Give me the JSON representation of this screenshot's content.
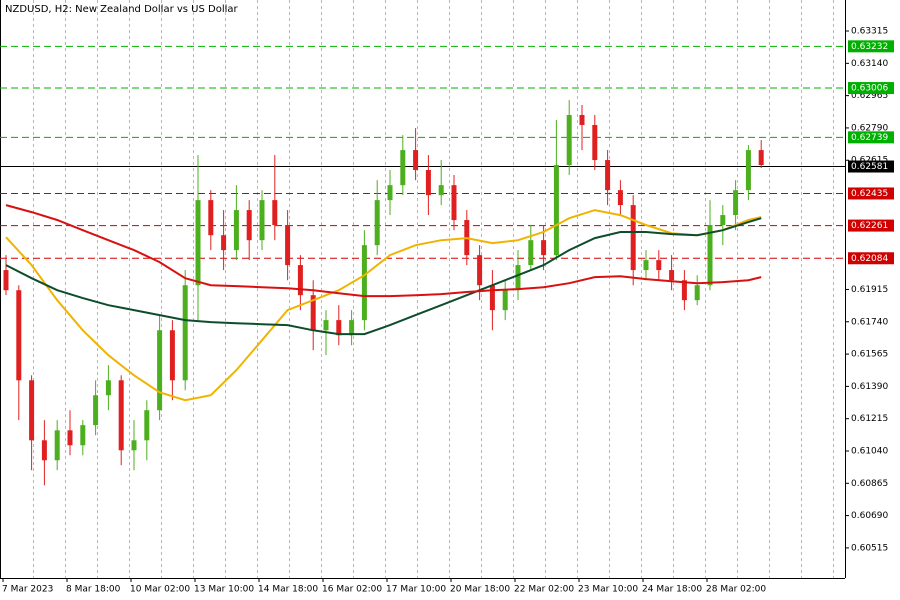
{
  "chart_data": {
    "type": "candlestick",
    "title": "NZDUSD, H2:  New Zealand Dollar vs US Dollar",
    "categories": [
      "7 Mar 2023",
      null,
      null,
      null,
      null,
      "8 Mar 18:00",
      null,
      null,
      null,
      null,
      "10 Mar 02:00",
      null,
      null,
      null,
      null,
      "13 Mar 10:00",
      null,
      null,
      null,
      null,
      "14 Mar 18:00",
      null,
      null,
      null,
      null,
      "16 Mar 02:00",
      null,
      null,
      null,
      null,
      "17 Mar 10:00",
      null,
      null,
      null,
      null,
      "20 Mar 18:00",
      null,
      null,
      null,
      null,
      "22 Mar 02:00",
      null,
      null,
      null,
      null,
      "23 Mar 10:00",
      null,
      null,
      null,
      null,
      "24 Mar 18:00",
      null,
      null,
      null,
      null,
      "28 Mar 02:00",
      null,
      null,
      null,
      null
    ],
    "open": [
      0.6202,
      0.61911,
      0.61423,
      0.61098,
      0.6099,
      0.61152,
      0.61071,
      0.6118,
      0.61342,
      0.61423,
      0.61044,
      0.61098,
      0.61261,
      0.61694,
      0.61423,
      0.61938,
      0.62399,
      0.62209,
      0.62128,
      0.62345,
      0.62182,
      0.62399,
      0.62264,
      0.62047,
      0.61884,
      0.61694,
      0.61749,
      0.61667,
      0.61749,
      0.62155,
      0.62399,
      0.6248,
      0.6267,
      0.62562,
      0.62426,
      0.6248,
      0.62291,
      0.62101,
      0.61938,
      0.61803,
      0.61911,
      0.62047,
      0.62182,
      0.62101,
      0.62589,
      0.6286,
      0.62806,
      0.62616,
      0.62453,
      0.62372,
      0.6202,
      0.62074,
      0.6202,
      0.61965,
      0.61857,
      0.61938,
      0.62264,
      0.62318,
      0.62453,
      0.6267
    ],
    "high": [
      0.62101,
      0.61938,
      0.6145,
      0.61207,
      0.61207,
      0.61261,
      0.61207,
      0.61423,
      0.61505,
      0.6145,
      0.61207,
      0.61315,
      0.61776,
      0.61749,
      0.6202,
      0.62643,
      0.62453,
      0.62345,
      0.6248,
      0.62399,
      0.62453,
      0.62643,
      0.62345,
      0.62101,
      0.61965,
      0.61803,
      0.6183,
      0.61803,
      0.62236,
      0.62507,
      0.62562,
      0.62751,
      0.62789,
      0.62643,
      0.62616,
      0.62535,
      0.62345,
      0.62155,
      0.6202,
      0.61965,
      0.62128,
      0.62264,
      0.62264,
      0.62833,
      0.62941,
      0.62914,
      0.6286,
      0.6267,
      0.62507,
      0.62426,
      0.62128,
      0.62128,
      0.62101,
      0.6202,
      0.61992,
      0.62399,
      0.62372,
      0.62507,
      0.62697,
      0.62724
    ],
    "low": [
      0.61884,
      0.61207,
      0.60936,
      0.60854,
      0.60936,
      0.61017,
      0.61017,
      0.61125,
      0.61261,
      0.60963,
      0.60936,
      0.6099,
      0.61207,
      0.61315,
      0.61369,
      0.61749,
      0.62128,
      0.6202,
      0.62074,
      0.62074,
      0.62128,
      0.62182,
      0.61965,
      0.61803,
      0.61586,
      0.61559,
      0.61613,
      0.61613,
      0.61694,
      0.62101,
      0.62318,
      0.62426,
      0.62507,
      0.62318,
      0.62372,
      0.62236,
      0.62047,
      0.61857,
      0.61694,
      0.61749,
      0.61857,
      0.6202,
      0.6202,
      0.62074,
      0.62535,
      0.6267,
      0.62562,
      0.62372,
      0.62318,
      0.61938,
      0.61965,
      0.61965,
      0.61911,
      0.61803,
      0.6183,
      0.61911,
      0.62155,
      0.62236,
      0.62399,
      0.62573
    ],
    "close": [
      0.61911,
      0.61423,
      0.61098,
      0.6099,
      0.61152,
      0.61071,
      0.6118,
      0.61342,
      0.61423,
      0.61044,
      0.61098,
      0.61261,
      0.61694,
      0.61423,
      0.61938,
      0.62399,
      0.62209,
      0.62128,
      0.62345,
      0.62182,
      0.62399,
      0.62264,
      0.62047,
      0.61884,
      0.61694,
      0.61749,
      0.61667,
      0.61749,
      0.62155,
      0.62399,
      0.6248,
      0.6267,
      0.62562,
      0.62426,
      0.6248,
      0.62291,
      0.62101,
      0.61938,
      0.61803,
      0.61911,
      0.62047,
      0.62182,
      0.62101,
      0.62589,
      0.6286,
      0.62806,
      0.62616,
      0.62453,
      0.62372,
      0.6202,
      0.62074,
      0.6202,
      0.61965,
      0.61857,
      0.61938,
      0.62264,
      0.62318,
      0.62453,
      0.6267,
      0.62589
    ],
    "up_color": "#4caf1e",
    "down_color": "#e02020",
    "series": [
      {
        "color": "#f0b400",
        "x": [
          0,
          2,
          4,
          6,
          8,
          10,
          12,
          14,
          16,
          18,
          20,
          22,
          24,
          26,
          28,
          30,
          32,
          34,
          36,
          38,
          40,
          42,
          44,
          46,
          48,
          50,
          52,
          54,
          56,
          58,
          59
        ],
        "values": [
          0.62198,
          0.62047,
          0.61857,
          0.61694,
          0.61559,
          0.6145,
          0.61358,
          0.61315,
          0.61342,
          0.61478,
          0.6164,
          0.61803,
          0.61857,
          0.61911,
          0.61992,
          0.62101,
          0.62155,
          0.62182,
          0.62193,
          0.62166,
          0.62182,
          0.62226,
          0.62301,
          0.62345,
          0.62318,
          0.62264,
          0.6222,
          0.62209,
          0.62236,
          0.62291,
          0.62307
        ]
      },
      {
        "color": "#0e4d2c",
        "x": [
          0,
          2,
          4,
          6,
          8,
          10,
          12,
          14,
          16,
          18,
          20,
          22,
          24,
          26,
          28,
          30,
          32,
          34,
          36,
          38,
          40,
          42,
          44,
          46,
          48,
          50,
          52,
          54,
          56,
          58,
          59
        ],
        "values": [
          0.62047,
          0.61976,
          0.61911,
          0.61868,
          0.6183,
          0.61803,
          0.61776,
          0.61749,
          0.61738,
          0.61732,
          0.61727,
          0.61722,
          0.61694,
          0.61673,
          0.61673,
          0.61722,
          0.61776,
          0.6183,
          0.61884,
          0.61938,
          0.61992,
          0.62047,
          0.62128,
          0.62193,
          0.62226,
          0.62226,
          0.62215,
          0.62209,
          0.62236,
          0.6228,
          0.62301
        ]
      },
      {
        "color": "#d81010",
        "x": [
          0,
          2,
          4,
          6,
          8,
          10,
          12,
          14,
          16,
          18,
          20,
          22,
          24,
          26,
          28,
          30,
          32,
          34,
          36,
          38,
          40,
          42,
          44,
          46,
          48,
          50,
          52,
          54,
          56,
          58,
          59
        ],
        "values": [
          0.62372,
          0.62334,
          0.62291,
          0.62236,
          0.62182,
          0.62128,
          0.62063,
          0.61976,
          0.61938,
          0.61933,
          0.61927,
          0.61922,
          0.61911,
          0.61895,
          0.61879,
          0.61879,
          0.61884,
          0.6189,
          0.61901,
          0.61911,
          0.61917,
          0.61927,
          0.61949,
          0.61982,
          0.61987,
          0.61971,
          0.6196,
          0.61949,
          0.61955,
          0.61965,
          0.61982
        ]
      }
    ],
    "levels": [
      {
        "value": 0.63232,
        "color": "#00b000"
      },
      {
        "value": 0.63006,
        "color": "#00b000"
      },
      {
        "value": 0.62739,
        "color": "#00b000"
      },
      {
        "value": 0.62581,
        "color": "#000000"
      },
      {
        "value": 0.62435,
        "color": "#d00000"
      },
      {
        "value": 0.62261,
        "color": "#d00000"
      },
      {
        "value": 0.62084,
        "color": "#d00000"
      }
    ],
    "ylim": [
      0.60352,
      0.63483
    ],
    "yticks": [
      0.63315,
      {
        "value": 0.6314,
        "label": "0.63140"
      },
      0.62965,
      {
        "value": 0.6279,
        "label": "0.62790"
      },
      0.62615,
      0.61915,
      {
        "value": 0.6174,
        "label": "0.61740"
      },
      0.61565,
      {
        "value": 0.6139,
        "label": "0.61390"
      },
      0.61215,
      {
        "value": 0.6104,
        "label": "0.61040"
      },
      0.60865,
      {
        "value": 0.6069,
        "label": "0.60690"
      },
      0.60515
    ]
  }
}
